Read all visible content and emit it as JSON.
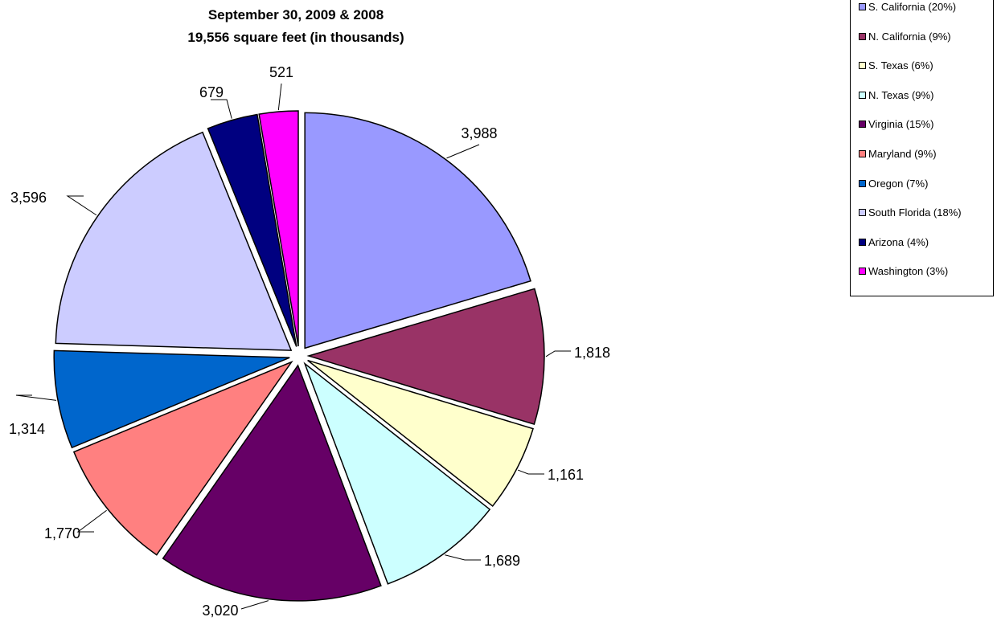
{
  "chart_data": {
    "type": "pie",
    "title_lines": [
      "September 30, 2009 & 2008",
      "19,556 square feet (in thousands)"
    ],
    "slices": [
      {
        "name": "S. California",
        "legend": "S. California (20%)",
        "value": 3988,
        "label": "3,988",
        "color": "#9999FF"
      },
      {
        "name": "N. California",
        "legend": "N. California (9%)",
        "value": 1818,
        "label": "1,818",
        "color": "#993366"
      },
      {
        "name": "S. Texas",
        "legend": "S. Texas (6%)",
        "value": 1161,
        "label": "1,161",
        "color": "#FFFFCC"
      },
      {
        "name": "N. Texas",
        "legend": "N. Texas (9%)",
        "value": 1689,
        "label": "1,689",
        "color": "#CCFFFF"
      },
      {
        "name": "Virginia",
        "legend": "Virginia (15%)",
        "value": 3020,
        "label": "3,020",
        "color": "#660066"
      },
      {
        "name": "Maryland",
        "legend": "Maryland (9%)",
        "value": 1770,
        "label": "1,770",
        "color": "#FF8080"
      },
      {
        "name": "Oregon",
        "legend": "Oregon (7%)",
        "value": 1314,
        "label": "1,314",
        "color": "#0066CC"
      },
      {
        "name": "South Florida",
        "legend": "South Florida (18%)",
        "value": 3596,
        "label": "3,596",
        "color": "#CCCCFF"
      },
      {
        "name": "Arizona",
        "legend": "Arizona (4%)",
        "value": 679,
        "label": "679",
        "color": "#000080"
      },
      {
        "name": "Washington",
        "legend": "Washington (3%)",
        "value": 521,
        "label": "521",
        "color": "#FF00FF"
      }
    ],
    "legend_position": "top-right"
  }
}
